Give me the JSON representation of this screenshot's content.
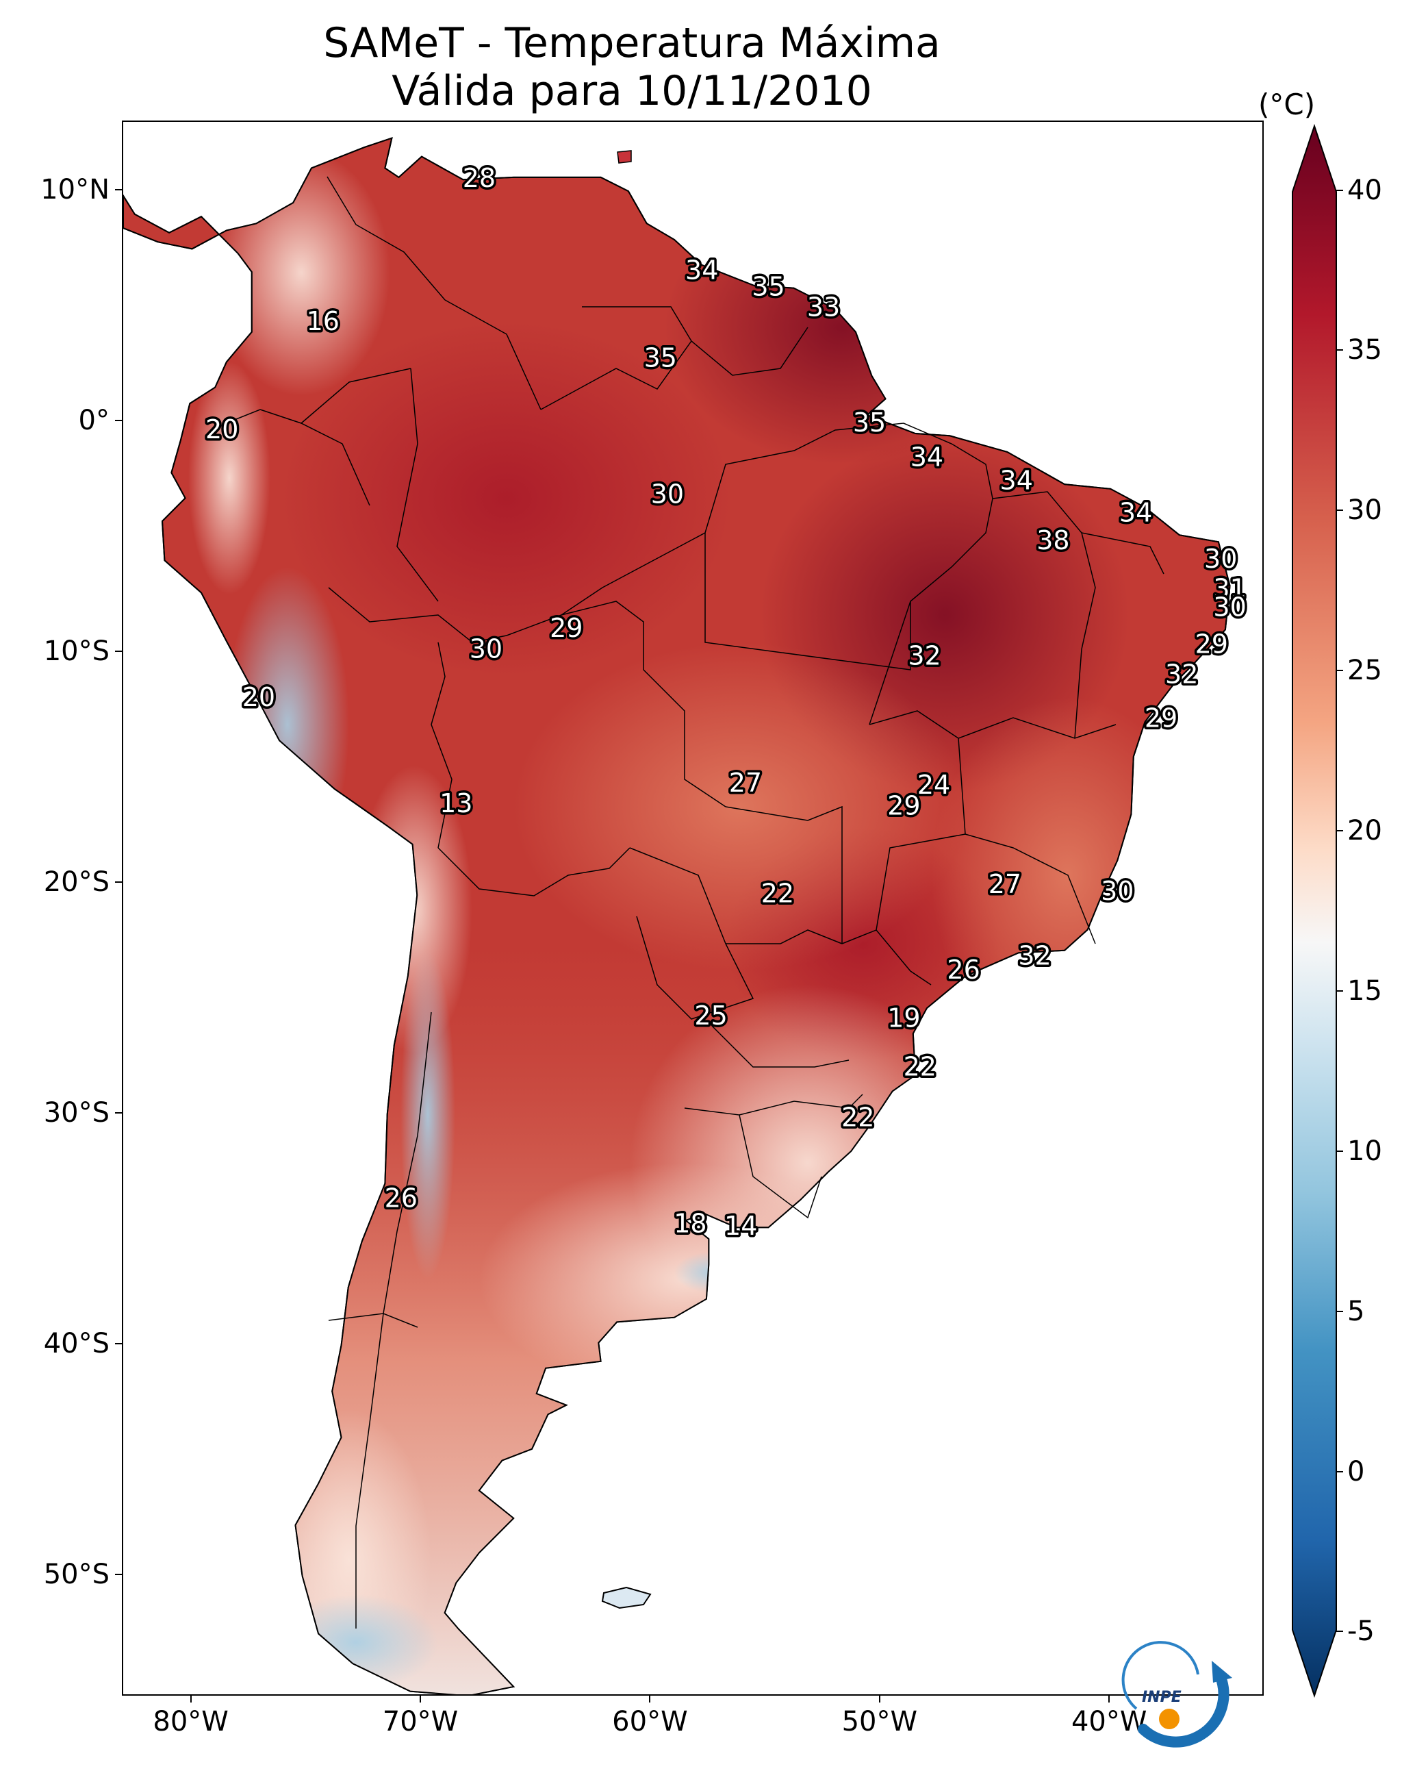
{
  "title": {
    "line1": "SAMeT - Temperatura Máxima",
    "line2": "Válida para 10/11/2010"
  },
  "axes": {
    "lat_ticks": [
      "10°N",
      "0°",
      "10°S",
      "20°S",
      "30°S",
      "40°S",
      "50°S"
    ],
    "lon_ticks": [
      "80°W",
      "70°W",
      "60°W",
      "50°W",
      "40°W"
    ]
  },
  "colorbar": {
    "unit": "(°C)",
    "ticks": [
      "40",
      "35",
      "30",
      "25",
      "20",
      "15",
      "10",
      "5",
      "0",
      "-5"
    ],
    "min": -7,
    "max": 42,
    "colors": {
      "deep_red": "#67001f",
      "red": "#b2182b",
      "mid_red": "#d6604d",
      "salmon": "#f4a582",
      "light": "#fddbc7",
      "white": "#f7f7f7",
      "light_blue": "#d1e5f0",
      "sky": "#92c5de",
      "blue": "#4393c3",
      "mid_blue": "#2166ac",
      "navy": "#053061"
    }
  },
  "logo": {
    "text": "INPE"
  },
  "map_labels": [
    {
      "v": "28",
      "lon": -67.5,
      "lat": 10.6
    },
    {
      "v": "16",
      "lon": -74.3,
      "lat": 4.4
    },
    {
      "v": "34",
      "lon": -57.8,
      "lat": 6.6
    },
    {
      "v": "35",
      "lon": -54.9,
      "lat": 5.9
    },
    {
      "v": "33",
      "lon": -52.5,
      "lat": 5.0
    },
    {
      "v": "35",
      "lon": -59.6,
      "lat": 2.8
    },
    {
      "v": "20",
      "lon": -78.7,
      "lat": -0.3
    },
    {
      "v": "35",
      "lon": -50.5,
      "lat": 0.0
    },
    {
      "v": "34",
      "lon": -48.0,
      "lat": -1.5
    },
    {
      "v": "34",
      "lon": -44.1,
      "lat": -2.5
    },
    {
      "v": "30",
      "lon": -59.3,
      "lat": -3.1
    },
    {
      "v": "34",
      "lon": -38.9,
      "lat": -3.9
    },
    {
      "v": "38",
      "lon": -42.5,
      "lat": -5.1
    },
    {
      "v": "30",
      "lon": -35.2,
      "lat": -5.9
    },
    {
      "v": "31",
      "lon": -34.8,
      "lat": -7.2
    },
    {
      "v": "30",
      "lon": -34.8,
      "lat": -8.0
    },
    {
      "v": "29",
      "lon": -63.7,
      "lat": -8.9
    },
    {
      "v": "30",
      "lon": -67.2,
      "lat": -9.8
    },
    {
      "v": "32",
      "lon": -48.1,
      "lat": -10.1
    },
    {
      "v": "29",
      "lon": -35.6,
      "lat": -9.6
    },
    {
      "v": "32",
      "lon": -36.9,
      "lat": -10.9
    },
    {
      "v": "20",
      "lon": -77.1,
      "lat": -11.9
    },
    {
      "v": "29",
      "lon": -37.8,
      "lat": -12.8
    },
    {
      "v": "27",
      "lon": -55.9,
      "lat": -15.6
    },
    {
      "v": "24",
      "lon": -47.7,
      "lat": -15.7
    },
    {
      "v": "13",
      "lon": -68.5,
      "lat": -16.5
    },
    {
      "v": "29",
      "lon": -49.0,
      "lat": -16.6
    },
    {
      "v": "27",
      "lon": -44.6,
      "lat": -20.0
    },
    {
      "v": "30",
      "lon": -39.7,
      "lat": -20.3
    },
    {
      "v": "22",
      "lon": -54.5,
      "lat": -20.4
    },
    {
      "v": "32",
      "lon": -43.3,
      "lat": -23.1
    },
    {
      "v": "26",
      "lon": -46.4,
      "lat": -23.7
    },
    {
      "v": "25",
      "lon": -57.4,
      "lat": -25.7
    },
    {
      "v": "19",
      "lon": -49.0,
      "lat": -25.8
    },
    {
      "v": "22",
      "lon": -48.3,
      "lat": -27.9
    },
    {
      "v": "22",
      "lon": -51.0,
      "lat": -30.1
    },
    {
      "v": "26",
      "lon": -70.9,
      "lat": -33.6
    },
    {
      "v": "18",
      "lon": -58.3,
      "lat": -34.7
    },
    {
      "v": "14",
      "lon": -56.1,
      "lat": -34.8
    }
  ]
}
